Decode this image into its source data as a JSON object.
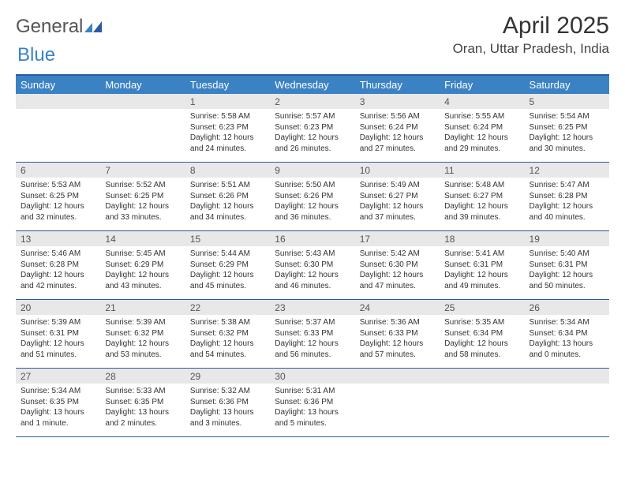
{
  "logo": {
    "text1": "General",
    "text2": "Blue"
  },
  "title": "April 2025",
  "location": "Oran, Uttar Pradesh, India",
  "colors": {
    "header_bg": "#3b82c4",
    "border": "#2c5aa0",
    "daynum_bg": "#e8e8e8",
    "text": "#333333",
    "white": "#ffffff"
  },
  "day_headers": [
    "Sunday",
    "Monday",
    "Tuesday",
    "Wednesday",
    "Thursday",
    "Friday",
    "Saturday"
  ],
  "weeks": [
    [
      {
        "num": "",
        "lines": []
      },
      {
        "num": "",
        "lines": []
      },
      {
        "num": "1",
        "lines": [
          "Sunrise: 5:58 AM",
          "Sunset: 6:23 PM",
          "Daylight: 12 hours",
          "and 24 minutes."
        ]
      },
      {
        "num": "2",
        "lines": [
          "Sunrise: 5:57 AM",
          "Sunset: 6:23 PM",
          "Daylight: 12 hours",
          "and 26 minutes."
        ]
      },
      {
        "num": "3",
        "lines": [
          "Sunrise: 5:56 AM",
          "Sunset: 6:24 PM",
          "Daylight: 12 hours",
          "and 27 minutes."
        ]
      },
      {
        "num": "4",
        "lines": [
          "Sunrise: 5:55 AM",
          "Sunset: 6:24 PM",
          "Daylight: 12 hours",
          "and 29 minutes."
        ]
      },
      {
        "num": "5",
        "lines": [
          "Sunrise: 5:54 AM",
          "Sunset: 6:25 PM",
          "Daylight: 12 hours",
          "and 30 minutes."
        ]
      }
    ],
    [
      {
        "num": "6",
        "lines": [
          "Sunrise: 5:53 AM",
          "Sunset: 6:25 PM",
          "Daylight: 12 hours",
          "and 32 minutes."
        ]
      },
      {
        "num": "7",
        "lines": [
          "Sunrise: 5:52 AM",
          "Sunset: 6:25 PM",
          "Daylight: 12 hours",
          "and 33 minutes."
        ]
      },
      {
        "num": "8",
        "lines": [
          "Sunrise: 5:51 AM",
          "Sunset: 6:26 PM",
          "Daylight: 12 hours",
          "and 34 minutes."
        ]
      },
      {
        "num": "9",
        "lines": [
          "Sunrise: 5:50 AM",
          "Sunset: 6:26 PM",
          "Daylight: 12 hours",
          "and 36 minutes."
        ]
      },
      {
        "num": "10",
        "lines": [
          "Sunrise: 5:49 AM",
          "Sunset: 6:27 PM",
          "Daylight: 12 hours",
          "and 37 minutes."
        ]
      },
      {
        "num": "11",
        "lines": [
          "Sunrise: 5:48 AM",
          "Sunset: 6:27 PM",
          "Daylight: 12 hours",
          "and 39 minutes."
        ]
      },
      {
        "num": "12",
        "lines": [
          "Sunrise: 5:47 AM",
          "Sunset: 6:28 PM",
          "Daylight: 12 hours",
          "and 40 minutes."
        ]
      }
    ],
    [
      {
        "num": "13",
        "lines": [
          "Sunrise: 5:46 AM",
          "Sunset: 6:28 PM",
          "Daylight: 12 hours",
          "and 42 minutes."
        ]
      },
      {
        "num": "14",
        "lines": [
          "Sunrise: 5:45 AM",
          "Sunset: 6:29 PM",
          "Daylight: 12 hours",
          "and 43 minutes."
        ]
      },
      {
        "num": "15",
        "lines": [
          "Sunrise: 5:44 AM",
          "Sunset: 6:29 PM",
          "Daylight: 12 hours",
          "and 45 minutes."
        ]
      },
      {
        "num": "16",
        "lines": [
          "Sunrise: 5:43 AM",
          "Sunset: 6:30 PM",
          "Daylight: 12 hours",
          "and 46 minutes."
        ]
      },
      {
        "num": "17",
        "lines": [
          "Sunrise: 5:42 AM",
          "Sunset: 6:30 PM",
          "Daylight: 12 hours",
          "and 47 minutes."
        ]
      },
      {
        "num": "18",
        "lines": [
          "Sunrise: 5:41 AM",
          "Sunset: 6:31 PM",
          "Daylight: 12 hours",
          "and 49 minutes."
        ]
      },
      {
        "num": "19",
        "lines": [
          "Sunrise: 5:40 AM",
          "Sunset: 6:31 PM",
          "Daylight: 12 hours",
          "and 50 minutes."
        ]
      }
    ],
    [
      {
        "num": "20",
        "lines": [
          "Sunrise: 5:39 AM",
          "Sunset: 6:31 PM",
          "Daylight: 12 hours",
          "and 51 minutes."
        ]
      },
      {
        "num": "21",
        "lines": [
          "Sunrise: 5:39 AM",
          "Sunset: 6:32 PM",
          "Daylight: 12 hours",
          "and 53 minutes."
        ]
      },
      {
        "num": "22",
        "lines": [
          "Sunrise: 5:38 AM",
          "Sunset: 6:32 PM",
          "Daylight: 12 hours",
          "and 54 minutes."
        ]
      },
      {
        "num": "23",
        "lines": [
          "Sunrise: 5:37 AM",
          "Sunset: 6:33 PM",
          "Daylight: 12 hours",
          "and 56 minutes."
        ]
      },
      {
        "num": "24",
        "lines": [
          "Sunrise: 5:36 AM",
          "Sunset: 6:33 PM",
          "Daylight: 12 hours",
          "and 57 minutes."
        ]
      },
      {
        "num": "25",
        "lines": [
          "Sunrise: 5:35 AM",
          "Sunset: 6:34 PM",
          "Daylight: 12 hours",
          "and 58 minutes."
        ]
      },
      {
        "num": "26",
        "lines": [
          "Sunrise: 5:34 AM",
          "Sunset: 6:34 PM",
          "Daylight: 13 hours",
          "and 0 minutes."
        ]
      }
    ],
    [
      {
        "num": "27",
        "lines": [
          "Sunrise: 5:34 AM",
          "Sunset: 6:35 PM",
          "Daylight: 13 hours",
          "and 1 minute."
        ]
      },
      {
        "num": "28",
        "lines": [
          "Sunrise: 5:33 AM",
          "Sunset: 6:35 PM",
          "Daylight: 13 hours",
          "and 2 minutes."
        ]
      },
      {
        "num": "29",
        "lines": [
          "Sunrise: 5:32 AM",
          "Sunset: 6:36 PM",
          "Daylight: 13 hours",
          "and 3 minutes."
        ]
      },
      {
        "num": "30",
        "lines": [
          "Sunrise: 5:31 AM",
          "Sunset: 6:36 PM",
          "Daylight: 13 hours",
          "and 5 minutes."
        ]
      },
      {
        "num": "",
        "lines": []
      },
      {
        "num": "",
        "lines": []
      },
      {
        "num": "",
        "lines": []
      }
    ]
  ]
}
